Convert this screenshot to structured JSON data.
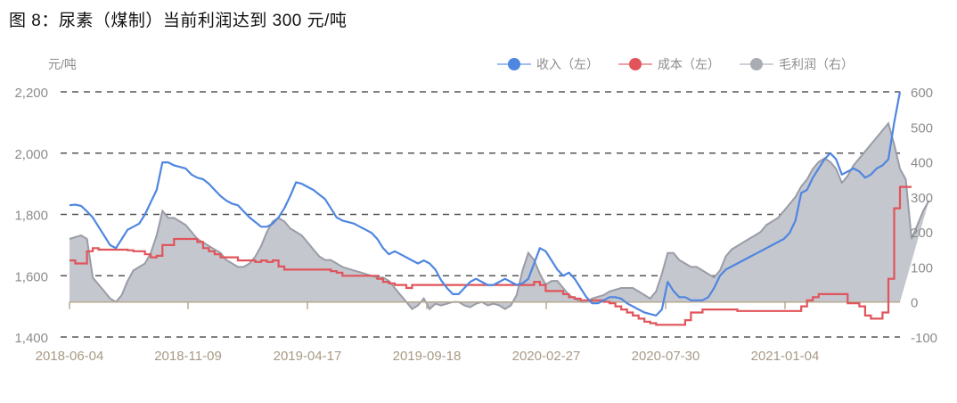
{
  "title": "图 8：尿素（煤制）当前利润达到 300 元/吨",
  "unit_label": "元/吨",
  "legend": [
    {
      "label": "收入（左）",
      "color": "#4f86e0"
    },
    {
      "label": "成本（左）",
      "color": "#e0545a"
    },
    {
      "label": "毛利润（右）",
      "color": "#a9abb5"
    }
  ],
  "chart_data": {
    "type": "line",
    "title": "图 8：尿素（煤制）当前利润达到 300 元/吨",
    "ylabel": "元/吨",
    "xlabel": "",
    "ylim": [
      1400,
      2200
    ],
    "y2lim": [
      -100,
      600
    ],
    "y_ticks": [
      "1,400",
      "1,600",
      "1,800",
      "2,000",
      "2,200"
    ],
    "y2_ticks": [
      "-100",
      "0",
      "100",
      "200",
      "300",
      "400",
      "500",
      "600"
    ],
    "x_tick_labels": [
      "2018-06-04",
      "2018-11-09",
      "2019-04-17",
      "2019-09-18",
      "2020-02-27",
      "2020-07-30",
      "2021-01-04"
    ],
    "grid": "horizontal dashed",
    "legend_position": "top-right",
    "series": [
      {
        "name": "收入（左）",
        "axis": "left",
        "type": "line",
        "color": "#4f86e0",
        "values": [
          1830,
          1832,
          1828,
          1810,
          1790,
          1760,
          1730,
          1700,
          1690,
          1720,
          1750,
          1760,
          1770,
          1800,
          1840,
          1880,
          1970,
          1970,
          1960,
          1955,
          1950,
          1930,
          1920,
          1915,
          1900,
          1880,
          1860,
          1845,
          1835,
          1830,
          1810,
          1790,
          1775,
          1760,
          1760,
          1770,
          1790,
          1820,
          1860,
          1905,
          1900,
          1890,
          1880,
          1865,
          1850,
          1820,
          1790,
          1780,
          1775,
          1770,
          1760,
          1750,
          1740,
          1720,
          1690,
          1670,
          1680,
          1670,
          1660,
          1650,
          1640,
          1650,
          1640,
          1620,
          1585,
          1560,
          1540,
          1540,
          1560,
          1580,
          1590,
          1580,
          1570,
          1570,
          1580,
          1590,
          1580,
          1570,
          1575,
          1590,
          1640,
          1690,
          1680,
          1650,
          1620,
          1600,
          1610,
          1590,
          1560,
          1530,
          1510,
          1510,
          1520,
          1530,
          1530,
          1525,
          1510,
          1500,
          1490,
          1480,
          1475,
          1470,
          1490,
          1580,
          1550,
          1530,
          1530,
          1520,
          1520,
          1520,
          1530,
          1560,
          1600,
          1620,
          1630,
          1640,
          1650,
          1660,
          1670,
          1680,
          1690,
          1700,
          1710,
          1720,
          1740,
          1780,
          1870,
          1880,
          1920,
          1950,
          1980,
          2000,
          1980,
          1930,
          1940,
          1950,
          1940,
          1920,
          1930,
          1950,
          1960,
          1980,
          2100,
          2200
        ]
      },
      {
        "name": "成本（左）",
        "axis": "left",
        "type": "step",
        "color": "#e0545a",
        "values": [
          1650,
          1640,
          1640,
          1680,
          1690,
          1685,
          1685,
          1685,
          1685,
          1685,
          1683,
          1680,
          1680,
          1670,
          1660,
          1665,
          1700,
          1700,
          1720,
          1720,
          1720,
          1720,
          1710,
          1690,
          1680,
          1670,
          1660,
          1660,
          1660,
          1650,
          1650,
          1650,
          1645,
          1650,
          1645,
          1650,
          1630,
          1620,
          1620,
          1620,
          1620,
          1620,
          1620,
          1620,
          1620,
          1615,
          1610,
          1600,
          1600,
          1600,
          1600,
          1600,
          1600,
          1590,
          1580,
          1575,
          1570,
          1570,
          1560,
          1570,
          1570,
          1570,
          1570,
          1570,
          1570,
          1570,
          1570,
          1570,
          1570,
          1570,
          1570,
          1570,
          1570,
          1570,
          1570,
          1570,
          1570,
          1570,
          1570,
          1570,
          1580,
          1570,
          1550,
          1550,
          1550,
          1540,
          1530,
          1525,
          1520,
          1520,
          1520,
          1520,
          1515,
          1510,
          1500,
          1490,
          1480,
          1470,
          1460,
          1450,
          1445,
          1440,
          1440,
          1440,
          1440,
          1440,
          1455,
          1480,
          1480,
          1490,
          1490,
          1490,
          1490,
          1490,
          1490,
          1485,
          1485,
          1485,
          1485,
          1485,
          1485,
          1485,
          1485,
          1485,
          1485,
          1485,
          1500,
          1520,
          1530,
          1540,
          1540,
          1540,
          1540,
          1540,
          1510,
          1510,
          1500,
          1470,
          1460,
          1460,
          1480,
          1590,
          1820,
          1890,
          1890,
          1890
        ]
      },
      {
        "name": "毛利润（右）",
        "axis": "right",
        "type": "area",
        "color": "#a9abb5",
        "values": [
          180,
          185,
          190,
          180,
          70,
          50,
          30,
          10,
          0,
          20,
          60,
          90,
          100,
          110,
          140,
          190,
          260,
          240,
          240,
          230,
          220,
          200,
          180,
          170,
          160,
          150,
          140,
          120,
          110,
          100,
          100,
          110,
          130,
          160,
          200,
          230,
          240,
          230,
          210,
          200,
          190,
          170,
          150,
          130,
          120,
          120,
          110,
          100,
          95,
          90,
          85,
          80,
          75,
          70,
          70,
          60,
          40,
          20,
          0,
          -20,
          -10,
          10,
          -20,
          -5,
          -10,
          -5,
          0,
          0,
          -10,
          -15,
          -5,
          0,
          -10,
          -5,
          -10,
          -20,
          -10,
          20,
          90,
          140,
          120,
          80,
          50,
          60,
          60,
          40,
          20,
          10,
          0,
          0,
          10,
          15,
          20,
          30,
          35,
          40,
          40,
          40,
          30,
          20,
          10,
          30,
          80,
          140,
          140,
          120,
          110,
          100,
          100,
          90,
          80,
          70,
          90,
          130,
          150,
          160,
          170,
          180,
          190,
          200,
          220,
          230,
          240,
          260,
          280,
          300,
          330,
          350,
          380,
          400,
          410,
          400,
          380,
          340,
          360,
          390,
          410,
          430,
          450,
          470,
          490,
          510,
          450,
          380,
          350,
          180,
          220,
          260,
          290
        ]
      }
    ]
  }
}
